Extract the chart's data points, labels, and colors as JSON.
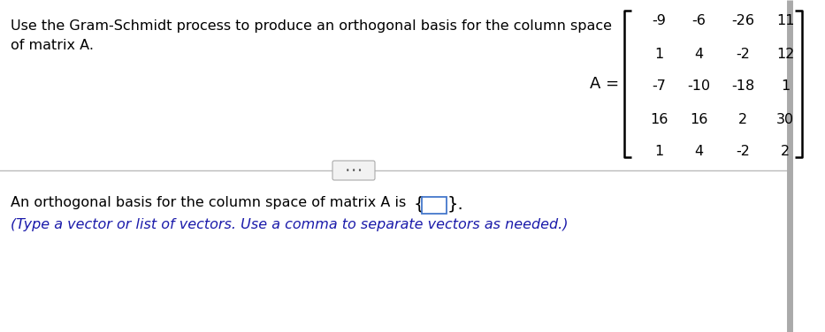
{
  "title_line1": "Use the Gram-Schmidt process to produce an orthogonal basis for the column space",
  "title_line2": "of matrix A.",
  "matrix_label": "A =",
  "matrix": [
    [
      "-9",
      "-6",
      "-26",
      "11"
    ],
    [
      "1",
      "4",
      "-2",
      "12"
    ],
    [
      "-7",
      "-10",
      "-18",
      "1"
    ],
    [
      "16",
      "16",
      "2",
      "30"
    ],
    [
      "1",
      "4",
      "-2",
      "2"
    ]
  ],
  "answer_line1": "An orthogonal basis for the column space of matrix A is",
  "answer_line2": "(Type a vector or list of vectors. Use a comma to separate vectors as needed.)",
  "bg_color": "#ffffff",
  "text_color": "#000000",
  "blue_color": "#1a1aaa",
  "divider_color": "#bbbbbb",
  "font_size_title": 11.5,
  "font_size_matrix": 11.5,
  "font_size_answer": 11.5,
  "font_size_answer2": 11.5,
  "right_bar_color": "#aaaaaa",
  "btn_bg": "#f2f2f2",
  "btn_border": "#aaaaaa",
  "box_border": "#4477cc"
}
